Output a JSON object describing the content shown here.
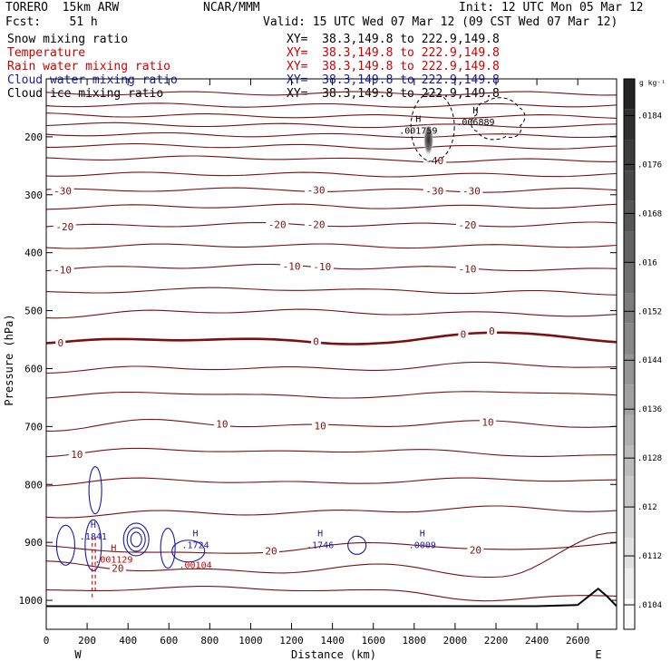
{
  "header": {
    "model": "TORERO  15km ARW",
    "center": "NCAR/MMM",
    "init": "Init: 12 UTC Mon 05 Mar 12",
    "fcst": "Fcst:    51 h",
    "valid": "Valid: 15 UTC Wed 07 Mar 12 (09 CST Wed 07 Mar 12)"
  },
  "fields": [
    {
      "name": "Snow mixing ratio",
      "xy": "XY=  38.3,149.8 to 222.9,149.8",
      "color": "#000000"
    },
    {
      "name": "Temperature",
      "xy": "XY=  38.3,149.8 to 222.9,149.8",
      "color": "#cc0000"
    },
    {
      "name": "Rain water mixing ratio",
      "xy": "XY=  38.3,149.8 to 222.9,149.8",
      "color": "#cc0000"
    },
    {
      "name": "Cloud water mixing ratio",
      "xy": "XY=  38.3,149.8 to 222.9,149.8",
      "color": "#1a1aa6"
    },
    {
      "name": "Cloud ice mixing ratio",
      "xy": "XY=  38.3,149.8 to 222.9,149.8",
      "color": "#000000"
    }
  ],
  "chart_data": {
    "type": "contour",
    "xlabel": "Distance (km)",
    "ylabel": "Pressure (hPa)",
    "xlim": [
      0,
      2790
    ],
    "ylim": [
      1050,
      100
    ],
    "x_ticks": [
      0,
      200,
      400,
      600,
      800,
      1000,
      1200,
      1400,
      1600,
      1800,
      2000,
      2200,
      2400,
      2600
    ],
    "y_ticks": [
      200,
      300,
      400,
      500,
      600,
      700,
      800,
      900,
      1000
    ],
    "left_end_label": "W",
    "right_end_label": "E",
    "colorbar": {
      "unit": "g kg⁻¹",
      "ticks": [
        0.0104,
        0.0112,
        0.012,
        0.0128,
        0.0136,
        0.0144,
        0.0152,
        0.016,
        0.0168,
        0.0176,
        0.0184
      ],
      "tick_labels": [
        ".0104",
        ".0112",
        ".012",
        ".0128",
        ".0136",
        ".0144",
        ".0152",
        ".016",
        ".0168",
        ".0176",
        ".0184"
      ],
      "min": 0.01,
      "max": 0.019
    },
    "temperature_color": "#7a1010",
    "temperature_contours": [
      {
        "p": [
          125,
          125,
          125,
          125,
          125,
          125
        ],
        "labels": []
      },
      {
        "p": [
          145,
          145,
          146,
          146,
          146,
          145
        ],
        "labels": []
      },
      {
        "p": [
          162,
          163,
          164,
          165,
          165,
          165
        ],
        "labels": []
      },
      {
        "p": [
          178,
          179,
          180,
          181,
          181,
          181
        ],
        "labels": []
      },
      {
        "p": [
          195,
          196,
          197,
          198,
          198,
          198
        ],
        "labels": []
      },
      {
        "p": [
          215,
          215,
          216,
          218,
          218,
          218
        ],
        "labels": []
      },
      {
        "p": [
          238,
          236,
          236,
          241,
          241,
          240
        ],
        "labels": [
          {
            "x": 1900,
            "text": "-40"
          }
        ]
      },
      {
        "p": [
          265,
          264,
          264,
          266,
          266,
          265
        ],
        "labels": []
      },
      {
        "p": [
          293,
          291,
          291,
          293,
          293,
          291
        ],
        "labels": [
          {
            "x": 80,
            "text": "-30"
          },
          {
            "x": 1320,
            "text": "-30"
          },
          {
            "x": 1900,
            "text": "-30"
          },
          {
            "x": 2080,
            "text": "-30"
          }
        ]
      },
      {
        "p": [
          322,
          320,
          319,
          321,
          321,
          319
        ],
        "labels": []
      },
      {
        "p": [
          355,
          352,
          351,
          352,
          352,
          350
        ],
        "labels": [
          {
            "x": 90,
            "text": "-20"
          },
          {
            "x": 1130,
            "text": "-20"
          },
          {
            "x": 1320,
            "text": "-20"
          },
          {
            "x": 2060,
            "text": "-20"
          }
        ]
      },
      {
        "p": [
          390,
          388,
          387,
          389,
          389,
          387
        ],
        "labels": []
      },
      {
        "p": [
          430,
          424,
          423,
          426,
          428,
          430
        ],
        "labels": [
          {
            "x": 80,
            "text": "-10"
          },
          {
            "x": 1200,
            "text": "-10"
          },
          {
            "x": 1350,
            "text": "-10"
          },
          {
            "x": 2060,
            "text": "-10"
          }
        ]
      },
      {
        "p": [
          470,
          464,
          462,
          466,
          468,
          470
        ],
        "labels": []
      },
      {
        "p": [
          510,
          502,
          500,
          504,
          505,
          508
        ],
        "labels": []
      },
      {
        "p": [
          556,
          548,
          552,
          556,
          535,
          556
        ],
        "labels": [
          {
            "x": 70,
            "text": "0"
          },
          {
            "x": 1320,
            "text": "0"
          },
          {
            "x": 2040,
            "text": "0"
          },
          {
            "x": 2180,
            "text": "0"
          }
        ],
        "thick": true
      },
      {
        "p": [
          605,
          598,
          600,
          600,
          590,
          600
        ],
        "labels": []
      },
      {
        "p": [
          650,
          640,
          648,
          648,
          638,
          648
        ],
        "labels": []
      },
      {
        "p": [
          705,
          690,
          700,
          697,
          692,
          702
        ],
        "labels": [
          {
            "x": 860,
            "text": "10"
          },
          {
            "x": 1340,
            "text": "10"
          },
          {
            "x": 2160,
            "text": "10"
          }
        ]
      },
      {
        "p": [
          750,
          738,
          745,
          740,
          748,
          752
        ],
        "labels": [
          {
            "x": 150,
            "text": "10"
          }
        ]
      },
      {
        "p": [
          800,
          790,
          798,
          795,
          790,
          795
        ],
        "labels": []
      },
      {
        "p": [
          855,
          848,
          850,
          845,
          840,
          845
        ],
        "labels": []
      },
      {
        "p": [
          905,
          920,
          915,
          900,
          915,
          900
        ],
        "labels": [
          {
            "x": 1100,
            "text": "20"
          },
          {
            "x": 2100,
            "text": "20"
          }
        ]
      },
      {
        "p": [
          935,
          948,
          950,
          940,
          960,
          880
        ],
        "labels": [
          {
            "x": 350,
            "text": "20"
          }
        ]
      },
      {
        "p": [
          985,
          978,
          980,
          985,
          1000,
          990
        ],
        "labels": []
      }
    ],
    "highs": [
      {
        "x": 1820,
        "p": 190,
        "label": "H",
        "value": ".001759",
        "color": "#000000"
      },
      {
        "x": 2100,
        "p": 175,
        "label": "H",
        "value": ".006889",
        "color": "#000000"
      },
      {
        "x": 230,
        "p": 890,
        "label": "H",
        "value": ".1841",
        "color": "#1a1aa6"
      },
      {
        "x": 730,
        "p": 905,
        "label": "H",
        "value": ".1724",
        "color": "#1a1aa6"
      },
      {
        "x": 1340,
        "p": 905,
        "label": "H",
        "value": ".1746",
        "color": "#1a1aa6"
      },
      {
        "x": 1840,
        "p": 905,
        "label": "H",
        "value": ".0009",
        "color": "#1a1aa6"
      },
      {
        "x": 330,
        "p": 930,
        "label": "H",
        "value": ".001129",
        "color": "#cc0000"
      },
      {
        "x": 730,
        "p": 940,
        "label": "",
        "value": ".00104",
        "color": "#cc0000"
      }
    ],
    "snow_core": {
      "x": 1870,
      "p_top": 175,
      "p_bottom": 235,
      "max_value": 0.0184
    },
    "terrain_p": 1010
  }
}
